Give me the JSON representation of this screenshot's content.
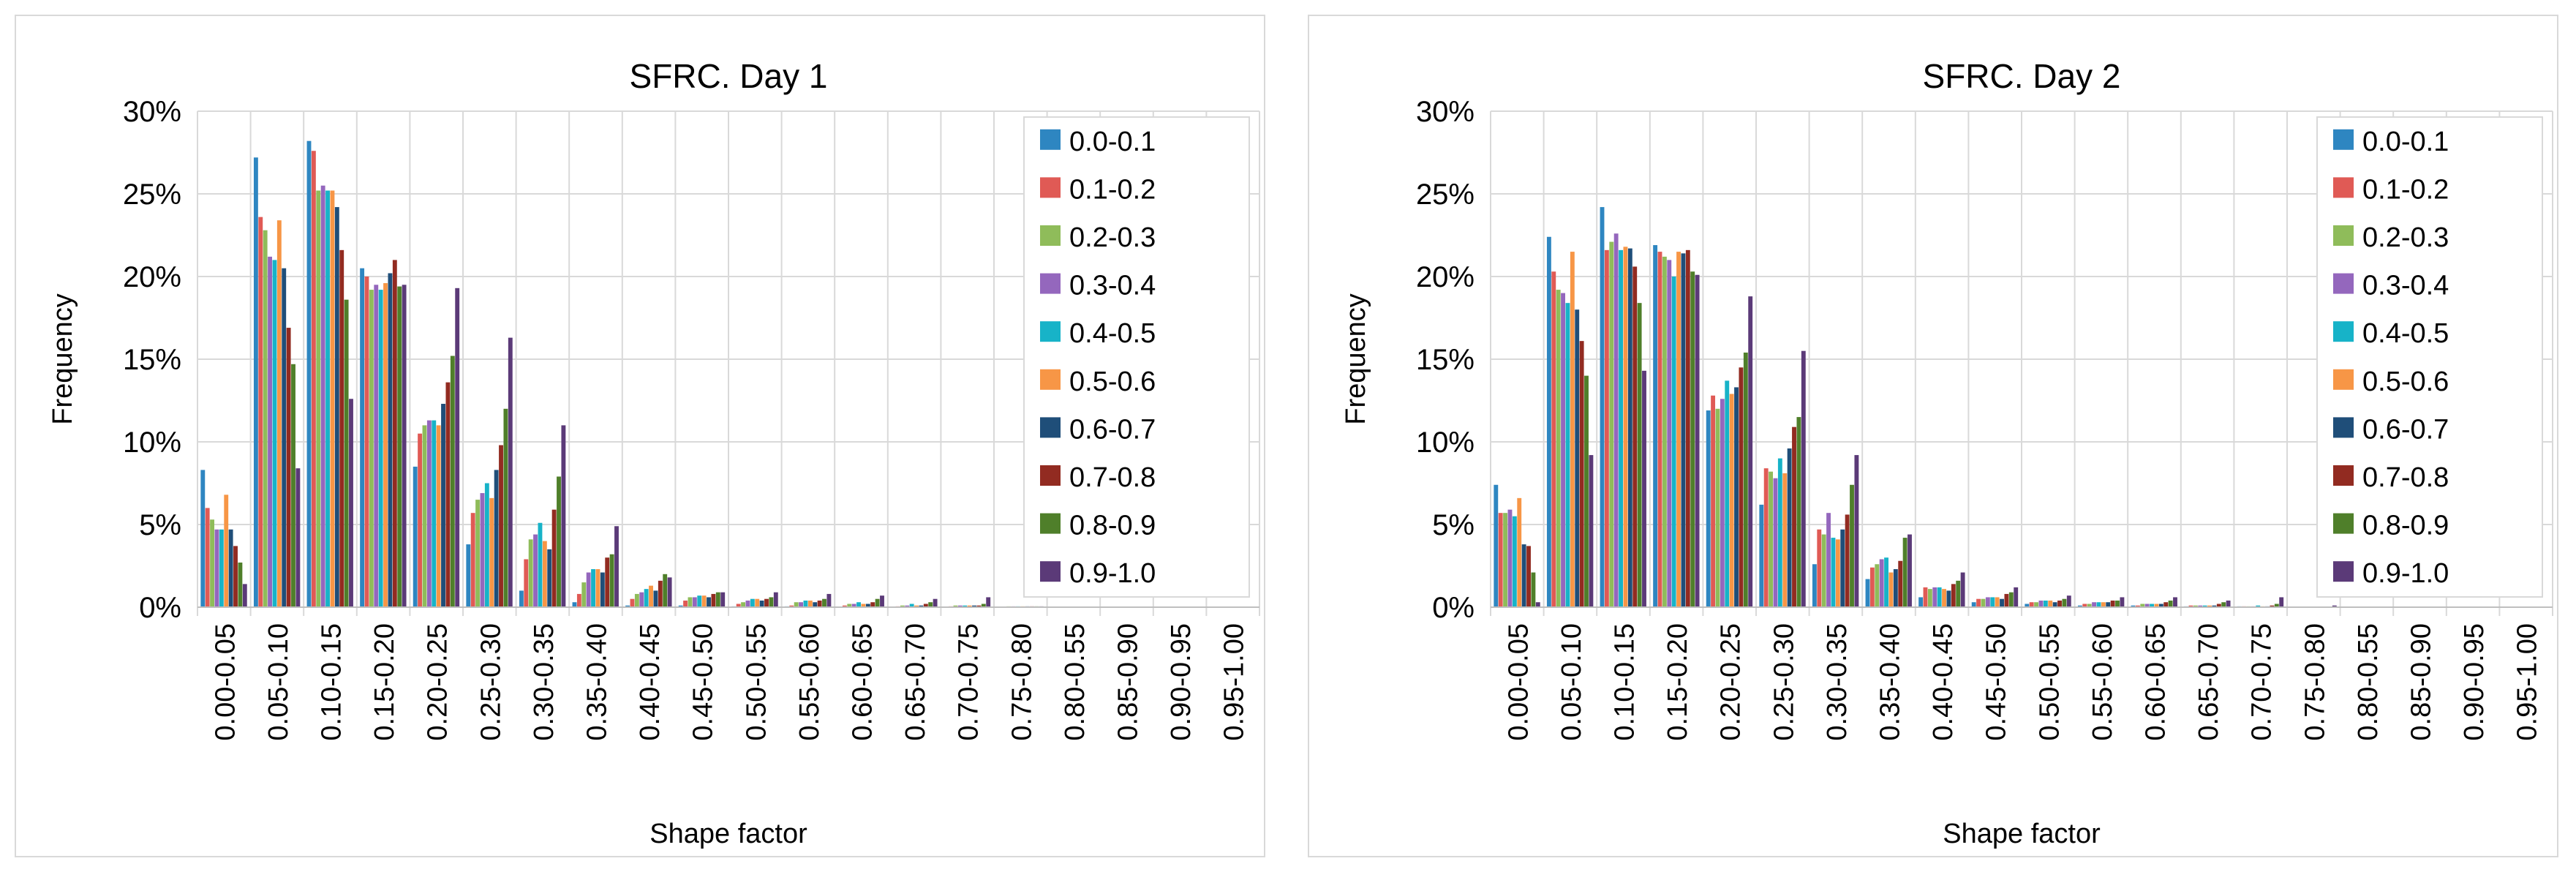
{
  "colors": {
    "series": [
      "#2e86c1",
      "#e05a55",
      "#8fbc5a",
      "#9467bd",
      "#17b3c8",
      "#f79646",
      "#1f4e79",
      "#922b21",
      "#4f7f2a",
      "#5b3a78"
    ],
    "grid": "#d9d9d9",
    "axis": "#bfbfbf",
    "text": "#000000"
  },
  "chart_data": [
    {
      "type": "bar",
      "title": "SFRC. Day 1",
      "xlabel": "Shape factor",
      "ylabel": "Frequency",
      "ylim": [
        0,
        30
      ],
      "yticks": [
        "0%",
        "5%",
        "10%",
        "15%",
        "20%",
        "25%",
        "30%"
      ],
      "grid": true,
      "legend_position": "top-right",
      "categories": [
        "0.00-0.05",
        "0.05-0.10",
        "0.10-0.15",
        "0.15-0.20",
        "0.20-0.25",
        "0.25-0.30",
        "0.30-0.35",
        "0.35-0.40",
        "0.40-0.45",
        "0.45-0.50",
        "0.50-0.55",
        "0.55-0.60",
        "0.60-0.65",
        "0.65-0.70",
        "0.70-0.75",
        "0.75-0.80",
        "0.80-0.55",
        "0.85-0.90",
        "0.90-0.95",
        "0.95-1.00"
      ],
      "series": [
        {
          "name": "0.0-0.1",
          "values": [
            8.3,
            27.2,
            28.2,
            20.5,
            8.5,
            3.8,
            1.0,
            0.3,
            0.1,
            0.1,
            0.05,
            0.05,
            0,
            0,
            0,
            0,
            0,
            0,
            0,
            0
          ]
        },
        {
          "name": "0.1-0.2",
          "values": [
            6.0,
            23.6,
            27.6,
            20.0,
            10.5,
            5.7,
            2.9,
            0.8,
            0.5,
            0.4,
            0.2,
            0.1,
            0.1,
            0.05,
            0.05,
            0,
            0,
            0,
            0,
            0
          ]
        },
        {
          "name": "0.2-0.3",
          "values": [
            5.3,
            22.8,
            25.2,
            19.2,
            11.0,
            6.5,
            4.1,
            1.5,
            0.8,
            0.6,
            0.3,
            0.3,
            0.2,
            0.1,
            0.1,
            0.05,
            0,
            0,
            0,
            0
          ]
        },
        {
          "name": "0.3-0.4",
          "values": [
            4.7,
            21.2,
            25.5,
            19.5,
            11.3,
            6.9,
            4.4,
            2.1,
            0.9,
            0.6,
            0.4,
            0.3,
            0.2,
            0.1,
            0.1,
            0.05,
            0,
            0,
            0,
            0
          ]
        },
        {
          "name": "0.4-0.5",
          "values": [
            4.7,
            21.0,
            25.2,
            19.2,
            11.3,
            7.5,
            5.1,
            2.3,
            1.1,
            0.7,
            0.5,
            0.4,
            0.3,
            0.2,
            0.1,
            0.05,
            0,
            0,
            0,
            0
          ]
        },
        {
          "name": "0.5-0.6",
          "values": [
            6.8,
            23.4,
            25.2,
            19.6,
            11.0,
            6.6,
            4.0,
            2.3,
            1.3,
            0.7,
            0.5,
            0.4,
            0.2,
            0.1,
            0.1,
            0.05,
            0,
            0,
            0,
            0
          ]
        },
        {
          "name": "0.6-0.7",
          "values": [
            4.7,
            20.5,
            24.2,
            20.2,
            12.3,
            8.3,
            3.5,
            2.1,
            1.0,
            0.6,
            0.4,
            0.3,
            0.2,
            0.1,
            0.1,
            0.05,
            0,
            0,
            0,
            0
          ]
        },
        {
          "name": "0.7-0.8",
          "values": [
            3.7,
            16.9,
            21.6,
            21.0,
            13.6,
            9.8,
            5.9,
            3.0,
            1.6,
            0.8,
            0.5,
            0.4,
            0.3,
            0.2,
            0.1,
            0.05,
            0,
            0,
            0,
            0
          ]
        },
        {
          "name": "0.8-0.9",
          "values": [
            2.7,
            14.7,
            18.6,
            19.4,
            15.2,
            12.0,
            7.9,
            3.2,
            2.0,
            0.9,
            0.6,
            0.5,
            0.5,
            0.3,
            0.2,
            0.05,
            0,
            0,
            0,
            0
          ]
        },
        {
          "name": "0.9-1.0",
          "values": [
            1.4,
            8.4,
            12.6,
            19.5,
            19.3,
            16.3,
            11.0,
            4.9,
            1.8,
            0.9,
            0.9,
            0.8,
            0.7,
            0.5,
            0.6,
            0.05,
            0,
            0,
            0,
            0
          ]
        }
      ]
    },
    {
      "type": "bar",
      "title": "SFRC. Day 2",
      "xlabel": "Shape factor",
      "ylabel": "Frequency",
      "ylim": [
        0,
        30
      ],
      "yticks": [
        "0%",
        "5%",
        "10%",
        "15%",
        "20%",
        "25%",
        "30%"
      ],
      "grid": true,
      "legend_position": "top-right",
      "categories": [
        "0.00-0.05",
        "0.05-0.10",
        "0.10-0.15",
        "0.15-0.20",
        "0.20-0.25",
        "0.25-0.30",
        "0.30-0.35",
        "0.35-0.40",
        "0.40-0.45",
        "0.45-0.50",
        "0.50-0.55",
        "0.55-0.60",
        "0.60-0.65",
        "0.65-0.70",
        "0.70-0.75",
        "0.75-0.80",
        "0.80-0.55",
        "0.85-0.90",
        "0.90-0.95",
        "0.95-1.00"
      ],
      "series": [
        {
          "name": "0.0-0.1",
          "values": [
            7.4,
            22.4,
            24.2,
            21.9,
            11.9,
            6.2,
            2.6,
            1.7,
            0.6,
            0.3,
            0.2,
            0.1,
            0.1,
            0.05,
            0.05,
            0,
            0,
            0,
            0,
            0
          ]
        },
        {
          "name": "0.1-0.2",
          "values": [
            5.7,
            20.3,
            21.6,
            21.5,
            12.8,
            8.4,
            4.7,
            2.4,
            1.2,
            0.5,
            0.3,
            0.2,
            0.1,
            0.1,
            0.05,
            0,
            0,
            0,
            0,
            0
          ]
        },
        {
          "name": "0.2-0.3",
          "values": [
            5.7,
            19.2,
            22.1,
            21.2,
            12.0,
            8.2,
            4.4,
            2.6,
            1.1,
            0.5,
            0.3,
            0.2,
            0.2,
            0.1,
            0.05,
            0,
            0,
            0,
            0,
            0
          ]
        },
        {
          "name": "0.3-0.4",
          "values": [
            5.9,
            19.0,
            22.6,
            21.0,
            12.6,
            7.8,
            5.7,
            2.9,
            1.2,
            0.6,
            0.4,
            0.3,
            0.2,
            0.1,
            0.05,
            0,
            0,
            0,
            0,
            0
          ]
        },
        {
          "name": "0.4-0.5",
          "values": [
            5.5,
            18.4,
            21.6,
            20.0,
            13.7,
            9.0,
            4.2,
            3.0,
            1.2,
            0.6,
            0.4,
            0.3,
            0.2,
            0.1,
            0.1,
            0,
            0,
            0,
            0,
            0
          ]
        },
        {
          "name": "0.5-0.6",
          "values": [
            6.6,
            21.5,
            21.8,
            21.5,
            12.9,
            8.1,
            4.1,
            2.1,
            1.1,
            0.6,
            0.4,
            0.3,
            0.2,
            0.1,
            0.05,
            0,
            0,
            0,
            0,
            0
          ]
        },
        {
          "name": "0.6-0.7",
          "values": [
            3.8,
            18.0,
            21.7,
            21.4,
            13.3,
            9.6,
            4.7,
            2.3,
            1.0,
            0.5,
            0.3,
            0.3,
            0.2,
            0.1,
            0.05,
            0,
            0,
            0,
            0,
            0
          ]
        },
        {
          "name": "0.7-0.8",
          "values": [
            3.7,
            16.1,
            20.6,
            21.6,
            14.5,
            10.9,
            5.6,
            2.8,
            1.4,
            0.8,
            0.4,
            0.4,
            0.3,
            0.2,
            0.1,
            0,
            0,
            0,
            0,
            0
          ]
        },
        {
          "name": "0.8-0.9",
          "values": [
            2.1,
            14.0,
            18.4,
            20.3,
            15.4,
            11.5,
            7.4,
            4.2,
            1.6,
            0.9,
            0.5,
            0.4,
            0.4,
            0.3,
            0.2,
            0,
            0,
            0,
            0,
            0
          ]
        },
        {
          "name": "0.9-1.0",
          "values": [
            0.3,
            9.2,
            14.3,
            20.1,
            18.8,
            15.5,
            9.2,
            4.4,
            2.1,
            1.2,
            0.7,
            0.6,
            0.6,
            0.4,
            0.6,
            0.1,
            0,
            0,
            0,
            0
          ]
        }
      ]
    }
  ]
}
